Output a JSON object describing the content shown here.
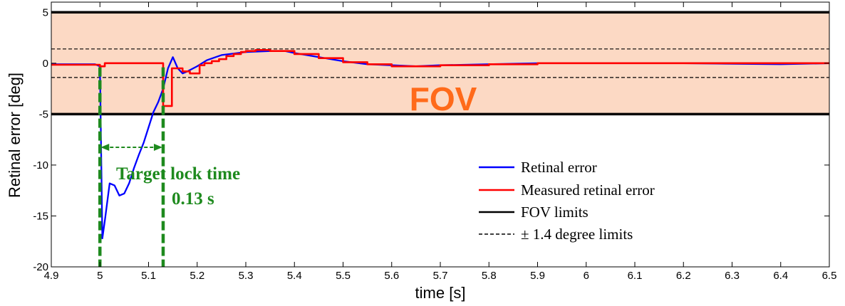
{
  "chart_data": {
    "type": "line",
    "xlabel": "time [s]",
    "ylabel": "Retinal error [deg]",
    "xlim": [
      4.9,
      6.5
    ],
    "ylim": [
      -20,
      6
    ],
    "xticks": [
      "4.9",
      "5",
      "5.1",
      "5.2",
      "5.3",
      "5.4",
      "5.5",
      "5.6",
      "5.7",
      "5.8",
      "5.9",
      "6",
      "6.1",
      "6.2",
      "6.3",
      "6.4",
      "6.5"
    ],
    "yticks": [
      "5",
      "0",
      "-5",
      "-10",
      "-15",
      "-20"
    ],
    "fov_band": {
      "ymin": -5,
      "ymax": 5,
      "color": "#fcd9c4"
    },
    "fov_label": "FOV",
    "annotation": {
      "line1": "Target lock time",
      "line2": "0.13 s",
      "t_start": 5.0,
      "t_end": 5.13,
      "color": "#1e8a1e"
    },
    "legend": {
      "position": "lower-right",
      "entries": [
        {
          "label": "Retinal error",
          "color": "#0000ff",
          "style": "solid"
        },
        {
          "label": "Measured retinal error",
          "color": "#ff0000",
          "style": "solid"
        },
        {
          "label": "FOV limits",
          "color": "#000000",
          "style": "solid"
        },
        {
          "label": "± 1.4 degree limits",
          "color": "#000000",
          "style": "dashed"
        }
      ]
    },
    "series": [
      {
        "name": "Retinal error",
        "color": "#0000ff",
        "step": false,
        "x": [
          4.9,
          4.95,
          4.99,
          5.0,
          5.005,
          5.01,
          5.02,
          5.03,
          5.04,
          5.05,
          5.06,
          5.07,
          5.08,
          5.09,
          5.1,
          5.11,
          5.12,
          5.13,
          5.14,
          5.15,
          5.16,
          5.17,
          5.18,
          5.2,
          5.22,
          5.25,
          5.3,
          5.35,
          5.38,
          5.4,
          5.45,
          5.5,
          5.55,
          5.6,
          5.65,
          5.7,
          5.8,
          5.9,
          6.0,
          6.2,
          6.4,
          6.5
        ],
        "y": [
          -0.1,
          -0.1,
          -0.1,
          -0.3,
          -17.2,
          -15.5,
          -11.8,
          -12.0,
          -13.0,
          -12.8,
          -11.8,
          -10.3,
          -9.0,
          -7.8,
          -6.3,
          -4.8,
          -3.8,
          -2.5,
          -0.5,
          0.6,
          -0.5,
          -1.0,
          -0.8,
          -0.3,
          0.3,
          0.8,
          1.1,
          1.2,
          1.2,
          1.0,
          0.6,
          0.2,
          -0.1,
          -0.2,
          -0.3,
          -0.2,
          -0.1,
          0.0,
          0.0,
          0.0,
          -0.1,
          0.0
        ]
      },
      {
        "name": "Measured retinal error",
        "color": "#ff0000",
        "step": true,
        "x": [
          4.9,
          5.0,
          5.01,
          5.13,
          5.148,
          5.17,
          5.185,
          5.205,
          5.215,
          5.23,
          5.245,
          5.26,
          5.275,
          5.29,
          5.3,
          5.32,
          5.35,
          5.4,
          5.45,
          5.5,
          5.55,
          5.6,
          5.7,
          5.8,
          5.9,
          6.0,
          6.1,
          6.3,
          6.5
        ],
        "y": [
          -0.15,
          -0.3,
          0.0,
          -4.2,
          -0.5,
          -0.8,
          -1.0,
          -0.2,
          0.0,
          0.2,
          0.4,
          0.7,
          0.9,
          1.1,
          1.2,
          1.3,
          1.2,
          0.9,
          0.5,
          0.1,
          -0.1,
          -0.3,
          -0.2,
          -0.1,
          0.0,
          0.0,
          0.0,
          0.0,
          0.0
        ]
      },
      {
        "name": "FOV limits",
        "color": "#000000",
        "x": [
          4.9,
          6.5
        ],
        "values": [
          5,
          -5
        ]
      },
      {
        "name": "± 1.4 degree limits",
        "color": "#000000",
        "x": [
          4.9,
          6.5
        ],
        "values": [
          1.4,
          -1.4
        ]
      }
    ]
  }
}
